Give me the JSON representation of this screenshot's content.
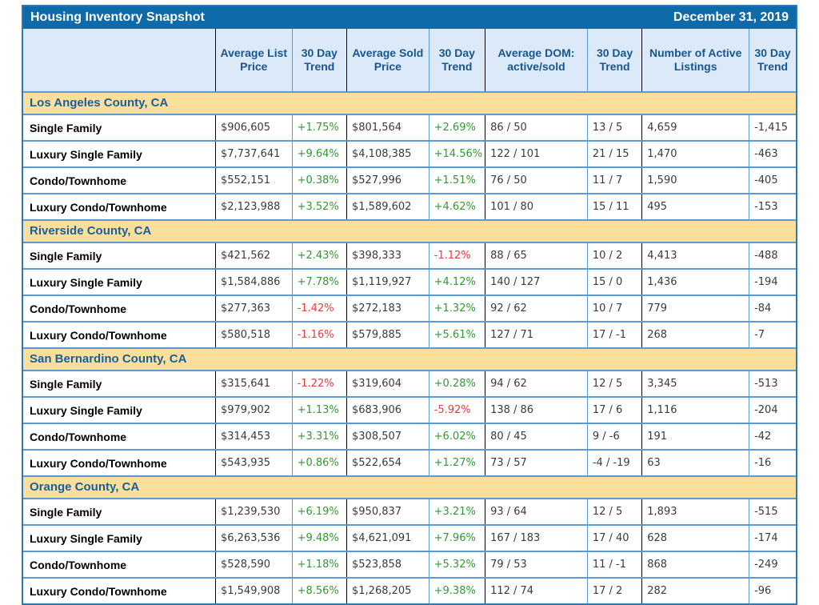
{
  "chart_data": {
    "type": "table",
    "title": "Housing Inventory Snapshot",
    "date": "December 31, 2019",
    "columns": [
      "",
      "Average List Price",
      "30 Day Trend",
      "Average Sold Price",
      "30 Day Trend",
      "Average DOM: active/sold",
      "30 Day Trend",
      "Number of Active Listings",
      "30 Day Trend"
    ],
    "sections": [
      {
        "name": "Los Angeles County, CA",
        "rows": [
          {
            "label": "Single Family",
            "cells": [
              "$906,605",
              "+1.75%",
              "$801,564",
              "+2.69%",
              "86 / 50",
              "13 / 5",
              "4,659",
              "-1,415"
            ]
          },
          {
            "label": "Luxury Single Family",
            "cells": [
              "$7,737,641",
              "+9.64%",
              "$4,108,385",
              "+14.56%",
              "122 / 101",
              "21 / 15",
              "1,470",
              "-463"
            ]
          },
          {
            "label": "Condo/Townhome",
            "cells": [
              "$552,151",
              "+0.38%",
              "$527,996",
              "+1.51%",
              "76 / 50",
              "11 / 7",
              "1,590",
              "-405"
            ]
          },
          {
            "label": "Luxury Condo/Townhome",
            "cells": [
              "$2,123,988",
              "+3.52%",
              "$1,589,602",
              "+4.62%",
              "101 / 80",
              "15 / 11",
              "495",
              "-153"
            ]
          }
        ]
      },
      {
        "name": "Riverside County, CA",
        "rows": [
          {
            "label": "Single Family",
            "cells": [
              "$421,562",
              "+2.43%",
              "$398,333",
              "-1.12%",
              "88 / 65",
              "10 / 2",
              "4,413",
              "-488"
            ]
          },
          {
            "label": "Luxury Single Family",
            "cells": [
              "$1,584,886",
              "+7.78%",
              "$1,119,927",
              "+4.12%",
              "140 / 127",
              "15 / 0",
              "1,436",
              "-194"
            ]
          },
          {
            "label": "Condo/Townhome",
            "cells": [
              "$277,363",
              "-1.42%",
              "$272,183",
              "+1.32%",
              "92 / 62",
              "10 / 7",
              "779",
              "-84"
            ]
          },
          {
            "label": "Luxury Condo/Townhome",
            "cells": [
              "$580,518",
              "-1.16%",
              "$579,885",
              "+5.61%",
              "127 / 71",
              "17 / -1",
              "268",
              "-7"
            ]
          }
        ]
      },
      {
        "name": "San Bernardino County, CA",
        "rows": [
          {
            "label": "Single Family",
            "cells": [
              "$315,641",
              "-1.22%",
              "$319,604",
              "+0.28%",
              "94 / 62",
              "12 / 5",
              "3,345",
              "-513"
            ]
          },
          {
            "label": "Luxury Single Family",
            "cells": [
              "$979,902",
              "+1.13%",
              "$683,906",
              "-5.92%",
              "138 / 86",
              "17 / 6",
              "1,116",
              "-204"
            ]
          },
          {
            "label": "Condo/Townhome",
            "cells": [
              "$314,453",
              "+3.31%",
              "$308,507",
              "+6.02%",
              "80 / 45",
              "9 / -6",
              "191",
              "-42"
            ]
          },
          {
            "label": "Luxury Condo/Townhome",
            "cells": [
              "$543,935",
              "+0.86%",
              "$522,654",
              "+1.27%",
              "73 / 57",
              "-4 / -19",
              "63",
              "-16"
            ]
          }
        ]
      },
      {
        "name": "Orange County, CA",
        "rows": [
          {
            "label": "Single Family",
            "cells": [
              "$1,239,530",
              "+6.19%",
              "$950,837",
              "+3.21%",
              "93 / 64",
              "12 / 5",
              "1,893",
              "-515"
            ]
          },
          {
            "label": "Luxury Single Family",
            "cells": [
              "$6,263,536",
              "+9.48%",
              "$4,621,091",
              "+7.96%",
              "167 / 183",
              "17 / 40",
              "628",
              "-174"
            ]
          },
          {
            "label": "Condo/Townhome",
            "cells": [
              "$528,590",
              "+1.18%",
              "$523,858",
              "+5.32%",
              "79 / 53",
              "11 / -1",
              "868",
              "-249"
            ]
          },
          {
            "label": "Luxury Condo/Townhome",
            "cells": [
              "$1,549,908",
              "+8.56%",
              "$1,268,205",
              "+9.38%",
              "112 / 74",
              "17 / 2",
              "282",
              "-96"
            ]
          }
        ]
      }
    ],
    "colors": {
      "title_bar_bg": "#0e6aa8",
      "title_bar_text": "#ffffff",
      "column_header_bg": "#dbe9f8",
      "column_header_text": "#17568f",
      "section_bg": "#fcdf9b",
      "section_text": "#1b5e9e",
      "row_divider_blue": "#5b9bd5",
      "group_divider_black": "#000000",
      "outer_border": "#2e79b5",
      "positive_trend": "#339933",
      "negative_trend": "#ee3a3a",
      "data_text": "#3a3a3a"
    }
  }
}
